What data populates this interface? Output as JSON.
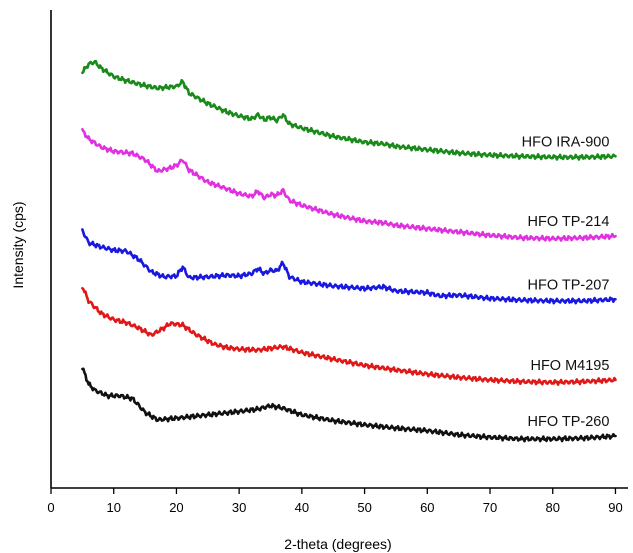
{
  "chart_data": {
    "type": "line",
    "xlabel": "2-theta (degrees)",
    "ylabel": "Intensity (cps)",
    "xlim": [
      0,
      92
    ],
    "ylim": [
      0,
      115
    ],
    "x_ticks": [
      0,
      10,
      20,
      30,
      40,
      50,
      60,
      70,
      80,
      90
    ],
    "y_ticks_shown": false,
    "series": [
      {
        "name": "HFO IRA-900",
        "color": "#1a8a1a",
        "points": [
          [
            5,
            100
          ],
          [
            6,
            102
          ],
          [
            7,
            102.5
          ],
          [
            8,
            101
          ],
          [
            10,
            99
          ],
          [
            12,
            98
          ],
          [
            15,
            96.8
          ],
          [
            17,
            96.2
          ],
          [
            19,
            96.5
          ],
          [
            20,
            96.6
          ],
          [
            21,
            97.8
          ],
          [
            22,
            95
          ],
          [
            25,
            92.5
          ],
          [
            28,
            90.5
          ],
          [
            30,
            89.5
          ],
          [
            32,
            88.8
          ],
          [
            33,
            89.8
          ],
          [
            34,
            88.6
          ],
          [
            35,
            89.2
          ],
          [
            36,
            88.4
          ],
          [
            37,
            89.8
          ],
          [
            38,
            87.6
          ],
          [
            40,
            86.6
          ],
          [
            45,
            84.6
          ],
          [
            50,
            83.2
          ],
          [
            53,
            82.8
          ],
          [
            55,
            82.2
          ],
          [
            60,
            81.4
          ],
          [
            65,
            80.6
          ],
          [
            70,
            80.1
          ],
          [
            75,
            79.8
          ],
          [
            80,
            79.6
          ],
          [
            85,
            79.6
          ],
          [
            90,
            79.8
          ]
        ]
      },
      {
        "name": "HFO TP-214",
        "color": "#e030e0",
        "points": [
          [
            5,
            86
          ],
          [
            6,
            84
          ],
          [
            8,
            82
          ],
          [
            10,
            81
          ],
          [
            13,
            80.5
          ],
          [
            15,
            79
          ],
          [
            17,
            76.2
          ],
          [
            19,
            77
          ],
          [
            20,
            77.6
          ],
          [
            21,
            79
          ],
          [
            22,
            76.5
          ],
          [
            25,
            73.6
          ],
          [
            28,
            72
          ],
          [
            30,
            70.8
          ],
          [
            32,
            70.2
          ],
          [
            33,
            71.4
          ],
          [
            34,
            69.8
          ],
          [
            35,
            70.6
          ],
          [
            36,
            70.4
          ],
          [
            37,
            71.6
          ],
          [
            38,
            69.2
          ],
          [
            40,
            68
          ],
          [
            45,
            65.8
          ],
          [
            50,
            64.2
          ],
          [
            53,
            63.8
          ],
          [
            55,
            63.2
          ],
          [
            60,
            62.4
          ],
          [
            65,
            61.6
          ],
          [
            70,
            60.8
          ],
          [
            75,
            60.2
          ],
          [
            80,
            60
          ],
          [
            85,
            60.2
          ],
          [
            90,
            60.6
          ]
        ]
      },
      {
        "name": "HFO TP-207",
        "color": "#1818e0",
        "points": [
          [
            5,
            62
          ],
          [
            6,
            59
          ],
          [
            8,
            58
          ],
          [
            10,
            57.2
          ],
          [
            12,
            57
          ],
          [
            14,
            55
          ],
          [
            16,
            52
          ],
          [
            18,
            50.8
          ],
          [
            20,
            51
          ],
          [
            21,
            53.2
          ],
          [
            22,
            50.6
          ],
          [
            25,
            50.8
          ],
          [
            28,
            51.2
          ],
          [
            30,
            51
          ],
          [
            32,
            51.6
          ],
          [
            33,
            52.8
          ],
          [
            34,
            51.6
          ],
          [
            35,
            52.4
          ],
          [
            36,
            52.2
          ],
          [
            37,
            54.2
          ],
          [
            38,
            50.8
          ],
          [
            40,
            49.6
          ],
          [
            45,
            48.6
          ],
          [
            50,
            48
          ],
          [
            53,
            48.4
          ],
          [
            55,
            47.4
          ],
          [
            60,
            47
          ],
          [
            62,
            46.2
          ],
          [
            65,
            46.4
          ],
          [
            70,
            45.6
          ],
          [
            75,
            45.2
          ],
          [
            80,
            45
          ],
          [
            85,
            45
          ],
          [
            90,
            45.4
          ]
        ]
      },
      {
        "name": "HFO M4195",
        "color": "#e01818",
        "points": [
          [
            5,
            48.5
          ],
          [
            6,
            45
          ],
          [
            8,
            42
          ],
          [
            10,
            40.5
          ],
          [
            12,
            39.8
          ],
          [
            14,
            38.5
          ],
          [
            16,
            36.8
          ],
          [
            18,
            38.5
          ],
          [
            19,
            39.6
          ],
          [
            21,
            39.2
          ],
          [
            23,
            37
          ],
          [
            26,
            34.6
          ],
          [
            28,
            33.8
          ],
          [
            30,
            33.4
          ],
          [
            33,
            33.2
          ],
          [
            35,
            33.6
          ],
          [
            37,
            34
          ],
          [
            40,
            32.6
          ],
          [
            45,
            31
          ],
          [
            50,
            29.5
          ],
          [
            55,
            28.4
          ],
          [
            60,
            27.4
          ],
          [
            65,
            26.6
          ],
          [
            70,
            26
          ],
          [
            75,
            25.6
          ],
          [
            80,
            25.4
          ],
          [
            85,
            25.6
          ],
          [
            90,
            26
          ]
        ]
      },
      {
        "name": "HFO TP-260",
        "color": "#111111",
        "points": [
          [
            5,
            29
          ],
          [
            6,
            25
          ],
          [
            7,
            23.5
          ],
          [
            9,
            22.2
          ],
          [
            11,
            22.2
          ],
          [
            13,
            21.5
          ],
          [
            15,
            18.2
          ],
          [
            17,
            16.4
          ],
          [
            20,
            16.8
          ],
          [
            25,
            17.6
          ],
          [
            30,
            18.4
          ],
          [
            33,
            19
          ],
          [
            35,
            19.8
          ],
          [
            37,
            19.2
          ],
          [
            40,
            17.6
          ],
          [
            45,
            16.2
          ],
          [
            50,
            15.2
          ],
          [
            55,
            14.4
          ],
          [
            60,
            13.8
          ],
          [
            65,
            12.8
          ],
          [
            70,
            12.2
          ],
          [
            75,
            11.8
          ],
          [
            80,
            11.8
          ],
          [
            85,
            12
          ],
          [
            90,
            12.5
          ]
        ]
      }
    ]
  }
}
